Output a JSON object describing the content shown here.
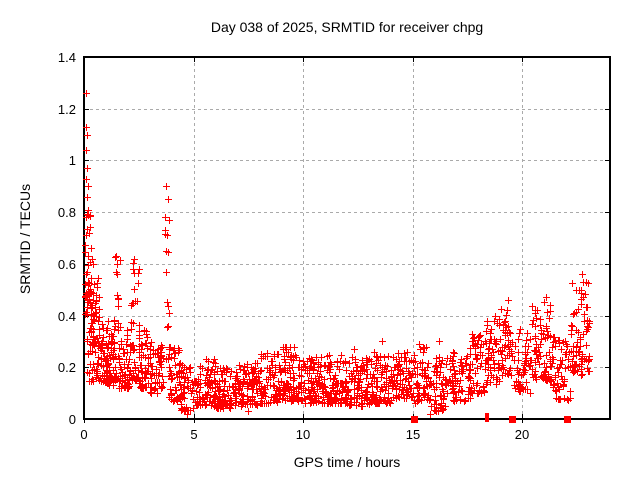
{
  "chart_data": {
    "type": "scatter",
    "title": "Day 038 of 2025, SRMTID for receiver chpg",
    "xlabel": "GPS time / hours",
    "ylabel": "SRMTID / TECUs",
    "xlim": [
      0,
      24
    ],
    "ylim": [
      0,
      1.4
    ],
    "xticks": [
      {
        "v": 0,
        "label": "0"
      },
      {
        "v": 5,
        "label": "5"
      },
      {
        "v": 10,
        "label": "10"
      },
      {
        "v": 15,
        "label": "15"
      },
      {
        "v": 20,
        "label": "20"
      }
    ],
    "yticks": [
      {
        "v": 0,
        "label": "0"
      },
      {
        "v": 0.2,
        "label": "0.2"
      },
      {
        "v": 0.4,
        "label": "0.4"
      },
      {
        "v": 0.6,
        "label": "0.6"
      },
      {
        "v": 0.8,
        "label": "0.8"
      },
      {
        "v": 1,
        "label": "1"
      },
      {
        "v": 1.2,
        "label": "1.2"
      },
      {
        "v": 1.4,
        "label": "1.4"
      }
    ],
    "grid": true,
    "legend": "none",
    "style": {
      "marker": "plus",
      "marker_size": 7,
      "marker_color": "#ff0000",
      "grid_color": "#aaaaaa",
      "grid_dash": [
        3,
        3
      ],
      "axis_color": "#000000",
      "text_color": "#000000",
      "background": "#ffffff"
    },
    "series": [
      {
        "name": "srmtid-band",
        "marker": "plus",
        "band_segments": [
          [
            0.03,
            0.28,
            30,
            0.45,
            0.8,
            1.3
          ],
          [
            0.05,
            0.4,
            25,
            0.25,
            0.5,
            1.2
          ],
          [
            0.1,
            0.6,
            20,
            0.14,
            0.3,
            1.2
          ],
          [
            0.3,
            0.7,
            45,
            0.28,
            0.55,
            1.5
          ],
          [
            0.6,
            1.1,
            55,
            0.14,
            0.38,
            1.4
          ],
          [
            1.0,
            1.35,
            40,
            0.13,
            0.35,
            1.4
          ],
          [
            1.35,
            1.65,
            30,
            0.15,
            0.63,
            1.8
          ],
          [
            1.6,
            2.1,
            50,
            0.12,
            0.35,
            1.5
          ],
          [
            2.1,
            2.55,
            45,
            0.15,
            0.62,
            1.8
          ],
          [
            2.5,
            3.0,
            50,
            0.12,
            0.35,
            1.4
          ],
          [
            3.0,
            3.6,
            55,
            0.1,
            0.3,
            1.4
          ],
          [
            3.65,
            3.9,
            18,
            0.2,
            0.92,
            1.9
          ],
          [
            3.85,
            4.4,
            45,
            0.07,
            0.28,
            1.5
          ],
          [
            4.3,
            5.0,
            55,
            0.03,
            0.22,
            1.3
          ],
          [
            5.0,
            6.0,
            85,
            0.05,
            0.24,
            1.6
          ],
          [
            6.0,
            7.0,
            85,
            0.04,
            0.2,
            1.5
          ],
          [
            7.0,
            8.0,
            85,
            0.05,
            0.22,
            1.5
          ],
          [
            8.0,
            9.0,
            85,
            0.06,
            0.26,
            1.6
          ],
          [
            9.0,
            10.0,
            90,
            0.07,
            0.28,
            1.7
          ],
          [
            10.0,
            11.0,
            90,
            0.06,
            0.24,
            1.5
          ],
          [
            11.0,
            12.0,
            90,
            0.06,
            0.25,
            1.5
          ],
          [
            12.0,
            13.0,
            85,
            0.05,
            0.24,
            1.5
          ],
          [
            13.0,
            14.0,
            85,
            0.06,
            0.26,
            1.6
          ],
          [
            14.0,
            15.0,
            80,
            0.08,
            0.28,
            1.5
          ],
          [
            15.0,
            15.6,
            45,
            0.06,
            0.3,
            1.6
          ],
          [
            15.6,
            16.6,
            70,
            0.03,
            0.24,
            1.4
          ],
          [
            16.6,
            17.6,
            75,
            0.07,
            0.26,
            1.4
          ],
          [
            17.6,
            18.3,
            55,
            0.1,
            0.33,
            1.4
          ],
          [
            18.3,
            19.0,
            55,
            0.13,
            0.4,
            1.4
          ],
          [
            19.0,
            19.55,
            45,
            0.17,
            0.44,
            1.4
          ],
          [
            19.6,
            20.4,
            55,
            0.1,
            0.35,
            1.3
          ],
          [
            20.4,
            21.3,
            70,
            0.15,
            0.46,
            1.4
          ],
          [
            21.3,
            22.2,
            65,
            0.07,
            0.32,
            1.4
          ],
          [
            22.2,
            23.05,
            75,
            0.17,
            0.53,
            1.3
          ]
        ]
      },
      {
        "name": "srmtid-outliers",
        "marker": "plus",
        "points": [
          [
            0.07,
            1.26
          ],
          [
            0.1,
            1.13
          ],
          [
            0.12,
            1.1
          ],
          [
            0.08,
            1.04
          ],
          [
            0.15,
            0.97
          ],
          [
            0.1,
            0.93
          ],
          [
            0.18,
            0.9
          ],
          [
            0.12,
            0.86
          ],
          [
            0.2,
            0.81
          ],
          [
            0.1,
            0.78
          ],
          [
            0.25,
            0.72
          ],
          [
            0.3,
            0.66
          ],
          [
            0.35,
            0.62
          ],
          [
            0.4,
            0.6
          ],
          [
            1.48,
            0.63
          ],
          [
            1.5,
            0.6
          ],
          [
            1.45,
            0.57
          ],
          [
            2.3,
            0.62
          ],
          [
            2.25,
            0.58
          ],
          [
            3.75,
            0.9
          ],
          [
            3.7,
            0.78
          ],
          [
            3.78,
            0.71
          ],
          [
            3.73,
            0.65
          ],
          [
            9.2,
            0.28
          ],
          [
            12.3,
            0.27
          ],
          [
            13.6,
            0.3
          ],
          [
            15.3,
            0.29
          ],
          [
            16.2,
            0.3
          ],
          [
            19.35,
            0.46
          ],
          [
            19.3,
            0.42
          ],
          [
            21.1,
            0.47
          ],
          [
            22.7,
            0.56
          ],
          [
            22.75,
            0.53
          ],
          [
            22.6,
            0.5
          ],
          [
            4.7,
            0.02
          ],
          [
            7.5,
            0.03
          ],
          [
            15.8,
            0.02
          ]
        ]
      },
      {
        "name": "flagged-epochs-squares",
        "marker": "filled-square",
        "y": 0,
        "x": [
          15.07,
          19.55,
          22.05
        ]
      },
      {
        "name": "flagged-epochs-bars",
        "marker": "thin-bar",
        "y": 0,
        "x": [
          18.33,
          18.42
        ]
      }
    ]
  }
}
